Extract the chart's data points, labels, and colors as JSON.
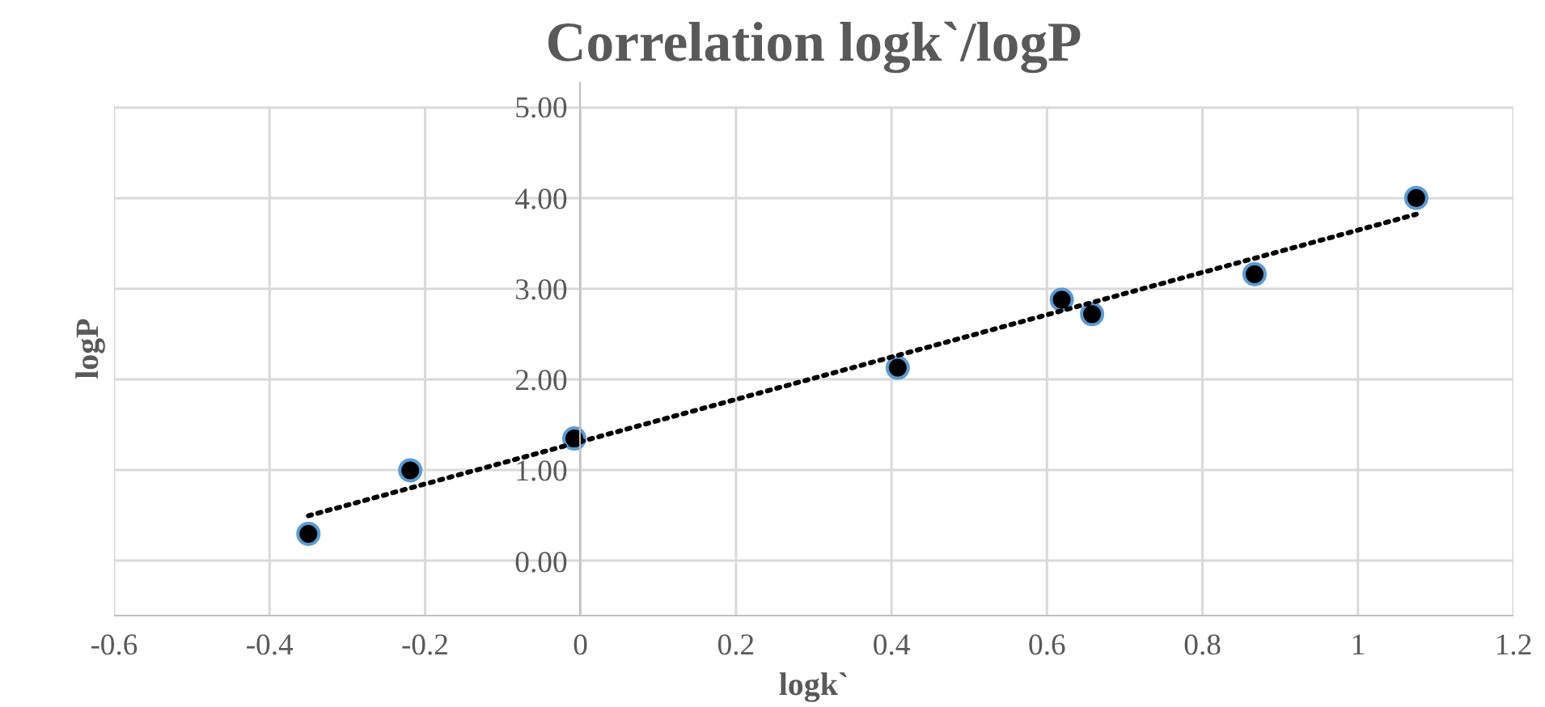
{
  "chart_data": {
    "type": "scatter",
    "title": "Correlation logk`/logP",
    "xlabel": "logk`",
    "ylabel": "logP",
    "xlim": [
      -0.6,
      1.2
    ],
    "xticks": [
      -0.6,
      -0.4,
      -0.2,
      0,
      0.2,
      0.4,
      0.6,
      0.8,
      1,
      1.2
    ],
    "ylim": [
      -0.6,
      5
    ],
    "yticks": [
      {
        "value": 0,
        "label": "0.00"
      },
      {
        "value": 1,
        "label": "1.00"
      },
      {
        "value": 2,
        "label": "2.00"
      },
      {
        "value": 3,
        "label": "3.00"
      },
      {
        "value": 4,
        "label": "4.00"
      },
      {
        "value": 5,
        "label": "5.00"
      }
    ],
    "grid": true,
    "marker": "circle",
    "series": [
      {
        "color": "#000000",
        "x": [
          -0.35,
          -0.219,
          -0.008,
          0.408,
          0.619,
          0.658,
          0.867,
          1.075
        ],
        "values": [
          0.3,
          1.0,
          1.35,
          2.13,
          2.88,
          2.72,
          3.16,
          4.0
        ]
      },
      {
        "type": "line",
        "color": "#000000",
        "line_style": "dotted",
        "marker": "none",
        "x": [
          -0.35,
          1.075
        ],
        "values": [
          0.5,
          3.82
        ]
      }
    ]
  }
}
